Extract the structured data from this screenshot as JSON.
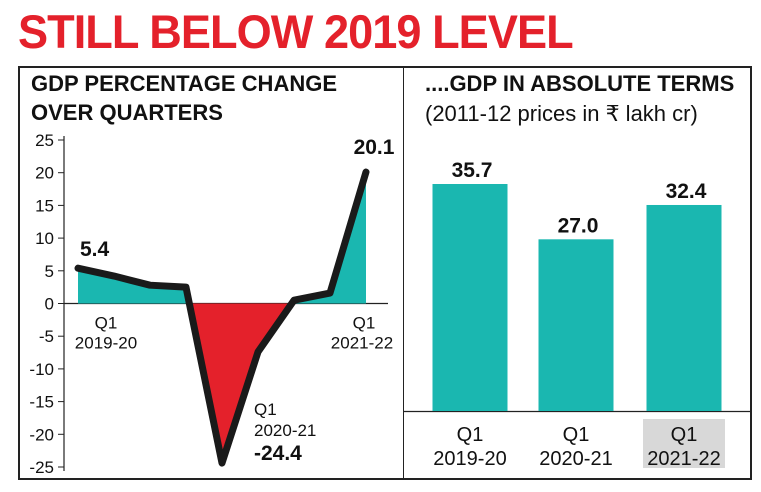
{
  "headline": "STILL BELOW 2019 LEVEL",
  "colors": {
    "headline_red": "#e4212b",
    "teal": "#1ab7b0",
    "red_area": "#e4212b",
    "line": "#1a1a1a",
    "highlight_bg": "#d8d8d8"
  },
  "left_panel": {
    "title_line1": "GDP PERCENTAGE CHANGE",
    "title_line2": "OVER QUARTERS"
  },
  "right_panel": {
    "title": "....GDP IN ABSOLUTE TERMS",
    "subtitle": "(2011-12 prices in ₹ lakh cr)"
  },
  "chart_data": [
    {
      "type": "line",
      "title": "GDP PERCENTAGE CHANGE OVER QUARTERS",
      "ylim": [
        -25,
        25
      ],
      "yticks": [
        25,
        20,
        15,
        10,
        5,
        0,
        -5,
        -10,
        -15,
        -20,
        -25
      ],
      "x": [
        0,
        1,
        2,
        3,
        4,
        5,
        6,
        7,
        8
      ],
      "values": [
        5.4,
        4.2,
        2.8,
        2.5,
        -24.4,
        -7.4,
        0.5,
        1.6,
        20.1
      ],
      "annotations": [
        {
          "index": 0,
          "value_label": "5.4",
          "quarter": "Q1",
          "year": "2019-20"
        },
        {
          "index": 4,
          "value_label": "-24.4",
          "quarter": "Q1",
          "year": "2020-21"
        },
        {
          "index": 8,
          "value_label": "20.1",
          "quarter": "Q1",
          "year": "2021-22"
        }
      ],
      "grid": false
    },
    {
      "type": "bar",
      "title": "....GDP IN ABSOLUTE TERMS",
      "subtitle": "(2011-12 prices in ₹ lakh cr)",
      "categories": [
        {
          "quarter": "Q1",
          "year": "2019-20"
        },
        {
          "quarter": "Q1",
          "year": "2020-21"
        },
        {
          "quarter": "Q1",
          "year": "2021-22"
        }
      ],
      "values": [
        35.7,
        27.0,
        32.4
      ],
      "value_labels": [
        "35.7",
        "27.0",
        "32.4"
      ],
      "highlighted_index": 2
    }
  ]
}
